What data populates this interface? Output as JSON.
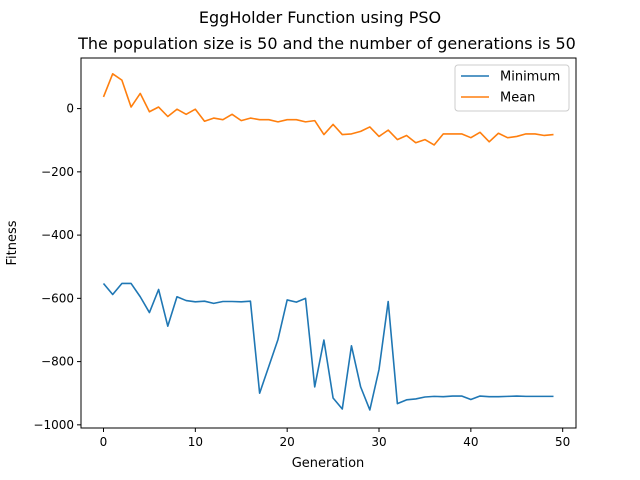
{
  "chart_data": {
    "type": "line",
    "title": "EggHolder Function using PSO",
    "subtitle": "The population size is 50 and the number of generations is 50",
    "xlabel": "Generation",
    "ylabel": "Fitness",
    "xlim": [
      -2.45,
      51.45
    ],
    "ylim": [
      -1010,
      160
    ],
    "xticks": [
      0,
      10,
      20,
      30,
      40,
      50
    ],
    "yticks": [
      -1000,
      -800,
      -600,
      -400,
      -200,
      0
    ],
    "ytick_labels": [
      "−1000",
      "−800",
      "−600",
      "−400",
      "−200",
      "0"
    ],
    "grid": false,
    "legend_position": "upper-right",
    "x": [
      0,
      1,
      2,
      3,
      4,
      5,
      6,
      7,
      8,
      9,
      10,
      11,
      12,
      13,
      14,
      15,
      16,
      17,
      18,
      19,
      20,
      21,
      22,
      23,
      24,
      25,
      26,
      27,
      28,
      29,
      30,
      31,
      32,
      33,
      34,
      35,
      36,
      37,
      38,
      39,
      40,
      41,
      42,
      43,
      44,
      45,
      46,
      47,
      48,
      49
    ],
    "series": [
      {
        "name": "Minimum",
        "color": "#1f77b4",
        "values": [
          -553,
          -588,
          -553,
          -553,
          -595,
          -645,
          -572,
          -688,
          -595,
          -607,
          -611,
          -609,
          -616,
          -610,
          -610,
          -611,
          -609,
          -900,
          -815,
          -730,
          -605,
          -612,
          -600,
          -880,
          -732,
          -915,
          -950,
          -750,
          -880,
          -953,
          -825,
          -610,
          -933,
          -921,
          -918,
          -912,
          -910,
          -911,
          -909,
          -909,
          -920,
          -909,
          -911,
          -911,
          -910,
          -909,
          -910,
          -910,
          -910,
          -910
        ]
      },
      {
        "name": "Mean",
        "color": "#ff7f0e",
        "values": [
          37,
          110,
          90,
          5,
          48,
          -10,
          5,
          -25,
          -2,
          -18,
          -2,
          -40,
          -30,
          -35,
          -18,
          -38,
          -30,
          -35,
          -35,
          -42,
          -35,
          -35,
          -42,
          -38,
          -82,
          -50,
          -82,
          -80,
          -72,
          -58,
          -88,
          -68,
          -98,
          -85,
          -108,
          -98,
          -115,
          -80,
          -80,
          -80,
          -92,
          -75,
          -105,
          -78,
          -92,
          -88,
          -80,
          -80,
          -85,
          -82
        ]
      }
    ]
  }
}
